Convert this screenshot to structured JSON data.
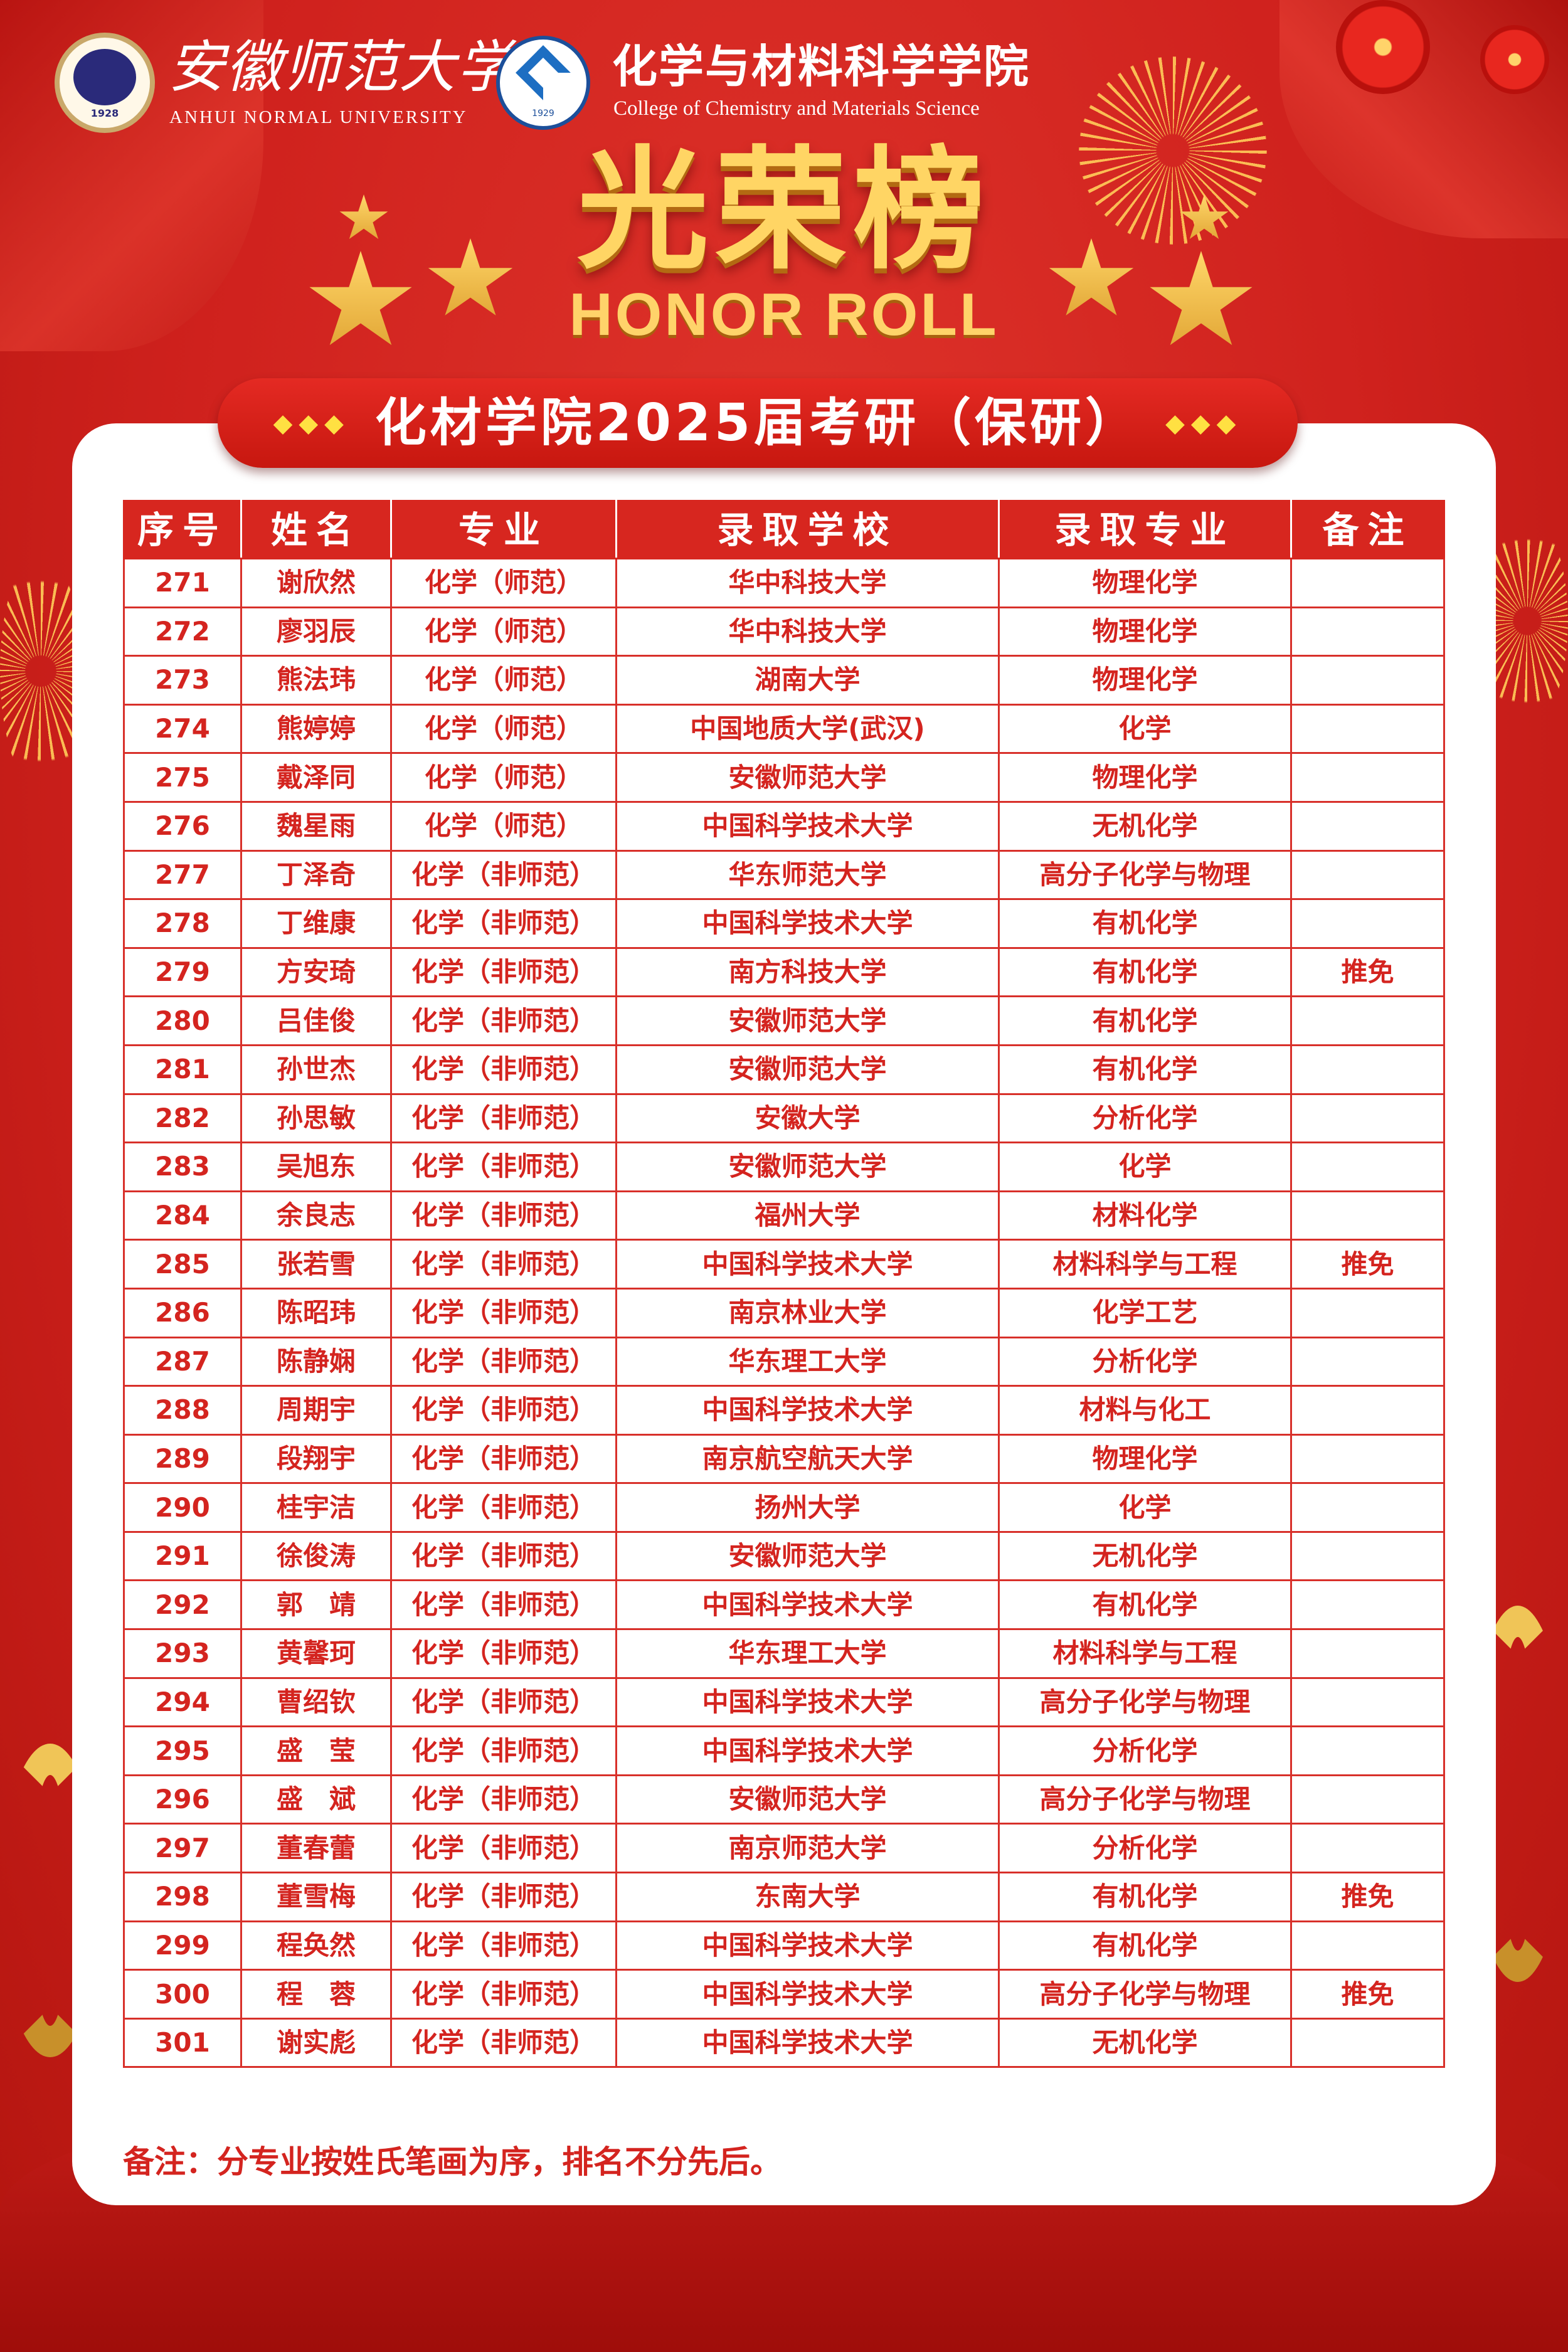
{
  "header": {
    "university_cn": "安徽师范大学",
    "university_en": "ANHUI NORMAL UNIVERSITY",
    "university_logo_year": "1928",
    "college_cn": "化学与材料科学学院",
    "college_en": "College of Chemistry and Materials Science",
    "college_logo_year": "1929"
  },
  "banner": {
    "title_cn": "光荣榜",
    "title_en": "HONOR ROLL",
    "subtitle": "化材学院2025届考研（保研）",
    "subtitle_ornament": "◆◆◆"
  },
  "table": {
    "columns": [
      "序号",
      "姓名",
      "专业",
      "录取学校",
      "录取专业",
      "备注"
    ],
    "rows": [
      {
        "no": "271",
        "name": "谢欣然",
        "major": "化学（师范）",
        "school": "华中科技大学",
        "admit_major": "物理化学",
        "note": ""
      },
      {
        "no": "272",
        "name": "廖羽辰",
        "major": "化学（师范）",
        "school": "华中科技大学",
        "admit_major": "物理化学",
        "note": ""
      },
      {
        "no": "273",
        "name": "熊法玮",
        "major": "化学（师范）",
        "school": "湖南大学",
        "admit_major": "物理化学",
        "note": ""
      },
      {
        "no": "274",
        "name": "熊婷婷",
        "major": "化学（师范）",
        "school": "中国地质大学(武汉)",
        "admit_major": "化学",
        "note": ""
      },
      {
        "no": "275",
        "name": "戴泽同",
        "major": "化学（师范）",
        "school": "安徽师范大学",
        "admit_major": "物理化学",
        "note": ""
      },
      {
        "no": "276",
        "name": "魏星雨",
        "major": "化学（师范）",
        "school": "中国科学技术大学",
        "admit_major": "无机化学",
        "note": ""
      },
      {
        "no": "277",
        "name": "丁泽奇",
        "major": "化学（非师范）",
        "school": "华东师范大学",
        "admit_major": "高分子化学与物理",
        "note": ""
      },
      {
        "no": "278",
        "name": "丁维康",
        "major": "化学（非师范）",
        "school": "中国科学技术大学",
        "admit_major": "有机化学",
        "note": ""
      },
      {
        "no": "279",
        "name": "方安琦",
        "major": "化学（非师范）",
        "school": "南方科技大学",
        "admit_major": "有机化学",
        "note": "推免"
      },
      {
        "no": "280",
        "name": "吕佳俊",
        "major": "化学（非师范）",
        "school": "安徽师范大学",
        "admit_major": "有机化学",
        "note": ""
      },
      {
        "no": "281",
        "name": "孙世杰",
        "major": "化学（非师范）",
        "school": "安徽师范大学",
        "admit_major": "有机化学",
        "note": ""
      },
      {
        "no": "282",
        "name": "孙思敏",
        "major": "化学（非师范）",
        "school": "安徽大学",
        "admit_major": "分析化学",
        "note": ""
      },
      {
        "no": "283",
        "name": "吴旭东",
        "major": "化学（非师范）",
        "school": "安徽师范大学",
        "admit_major": "化学",
        "note": ""
      },
      {
        "no": "284",
        "name": "余良志",
        "major": "化学（非师范）",
        "school": "福州大学",
        "admit_major": "材料化学",
        "note": ""
      },
      {
        "no": "285",
        "name": "张若雪",
        "major": "化学（非师范）",
        "school": "中国科学技术大学",
        "admit_major": "材料科学与工程",
        "note": "推免"
      },
      {
        "no": "286",
        "name": "陈昭玮",
        "major": "化学（非师范）",
        "school": "南京林业大学",
        "admit_major": "化学工艺",
        "note": ""
      },
      {
        "no": "287",
        "name": "陈静娴",
        "major": "化学（非师范）",
        "school": "华东理工大学",
        "admit_major": "分析化学",
        "note": ""
      },
      {
        "no": "288",
        "name": "周期宇",
        "major": "化学（非师范）",
        "school": "中国科学技术大学",
        "admit_major": "材料与化工",
        "note": ""
      },
      {
        "no": "289",
        "name": "段翔宇",
        "major": "化学（非师范）",
        "school": "南京航空航天大学",
        "admit_major": "物理化学",
        "note": ""
      },
      {
        "no": "290",
        "name": "桂宇洁",
        "major": "化学（非师范）",
        "school": "扬州大学",
        "admit_major": "化学",
        "note": ""
      },
      {
        "no": "291",
        "name": "徐俊涛",
        "major": "化学（非师范）",
        "school": "安徽师范大学",
        "admit_major": "无机化学",
        "note": ""
      },
      {
        "no": "292",
        "name": "郭　靖",
        "major": "化学（非师范）",
        "school": "中国科学技术大学",
        "admit_major": "有机化学",
        "note": ""
      },
      {
        "no": "293",
        "name": "黄馨珂",
        "major": "化学（非师范）",
        "school": "华东理工大学",
        "admit_major": "材料科学与工程",
        "note": ""
      },
      {
        "no": "294",
        "name": "曹绍钦",
        "major": "化学（非师范）",
        "school": "中国科学技术大学",
        "admit_major": "高分子化学与物理",
        "note": ""
      },
      {
        "no": "295",
        "name": "盛　莹",
        "major": "化学（非师范）",
        "school": "中国科学技术大学",
        "admit_major": "分析化学",
        "note": ""
      },
      {
        "no": "296",
        "name": "盛　斌",
        "major": "化学（非师范）",
        "school": "安徽师范大学",
        "admit_major": "高分子化学与物理",
        "note": ""
      },
      {
        "no": "297",
        "name": "董春蕾",
        "major": "化学（非师范）",
        "school": "南京师范大学",
        "admit_major": "分析化学",
        "note": ""
      },
      {
        "no": "298",
        "name": "董雪梅",
        "major": "化学（非师范）",
        "school": "东南大学",
        "admit_major": "有机化学",
        "note": "推免"
      },
      {
        "no": "299",
        "name": "程奂然",
        "major": "化学（非师范）",
        "school": "中国科学技术大学",
        "admit_major": "有机化学",
        "note": ""
      },
      {
        "no": "300",
        "name": "程　蓉",
        "major": "化学（非师范）",
        "school": "中国科学技术大学",
        "admit_major": "高分子化学与物理",
        "note": "推免"
      },
      {
        "no": "301",
        "name": "谢实彪",
        "major": "化学（非师范）",
        "school": "中国科学技术大学",
        "admit_major": "无机化学",
        "note": ""
      }
    ]
  },
  "footer_note": "备注：分专业按姓氏笔画为序，排名不分先后。",
  "colors": {
    "background": "#cf211d",
    "header": "#d7261f",
    "text": "#d4241f",
    "gold": "#ffd564"
  }
}
